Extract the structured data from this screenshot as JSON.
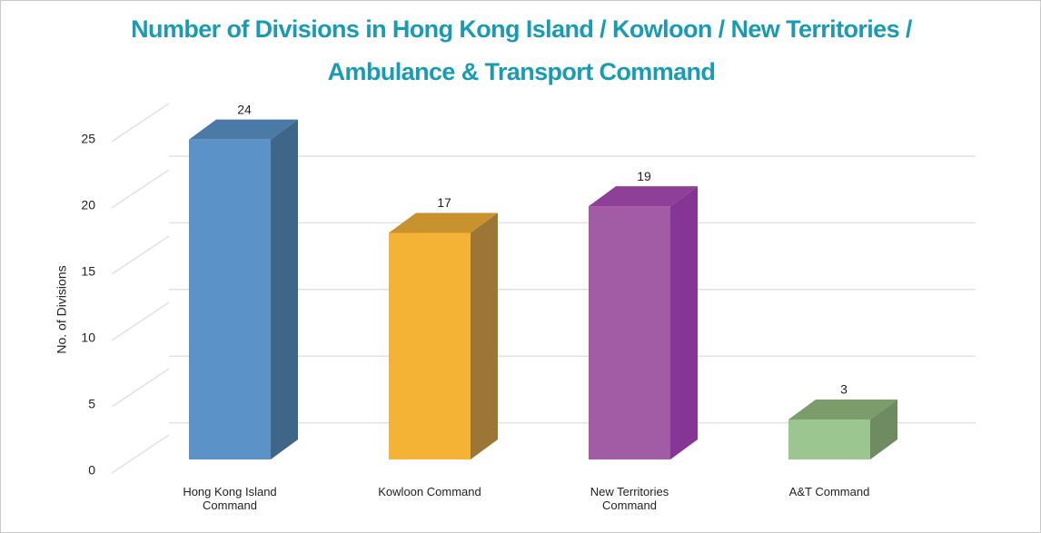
{
  "chart_data": {
    "type": "bar3d",
    "title": "Number of Divisions in Hong Kong Island / Kowloon / New Territories / Ambulance & Transport Command",
    "y_label": "No. of Divisions",
    "categories": [
      "Hong Kong Island Command",
      "Kowloon Command",
      "New Territories Command",
      "A&T Command"
    ],
    "values": [
      24,
      17,
      19,
      3
    ],
    "colors": [
      {
        "front": "#5b93c9",
        "side": "#3f6688",
        "top": "#4c7aa6"
      },
      {
        "front": "#f5b335",
        "side": "#9c7634",
        "top": "#c8922f"
      },
      {
        "front": "#a25ba5",
        "side": "#863595",
        "top": "#8e3f97"
      },
      {
        "front": "#9cc68f",
        "side": "#6f8b61",
        "top": "#7a9d6b"
      }
    ],
    "ylim": [
      0,
      25
    ],
    "yticks": [
      0,
      5,
      10,
      15,
      20,
      25
    ],
    "grid": true
  }
}
